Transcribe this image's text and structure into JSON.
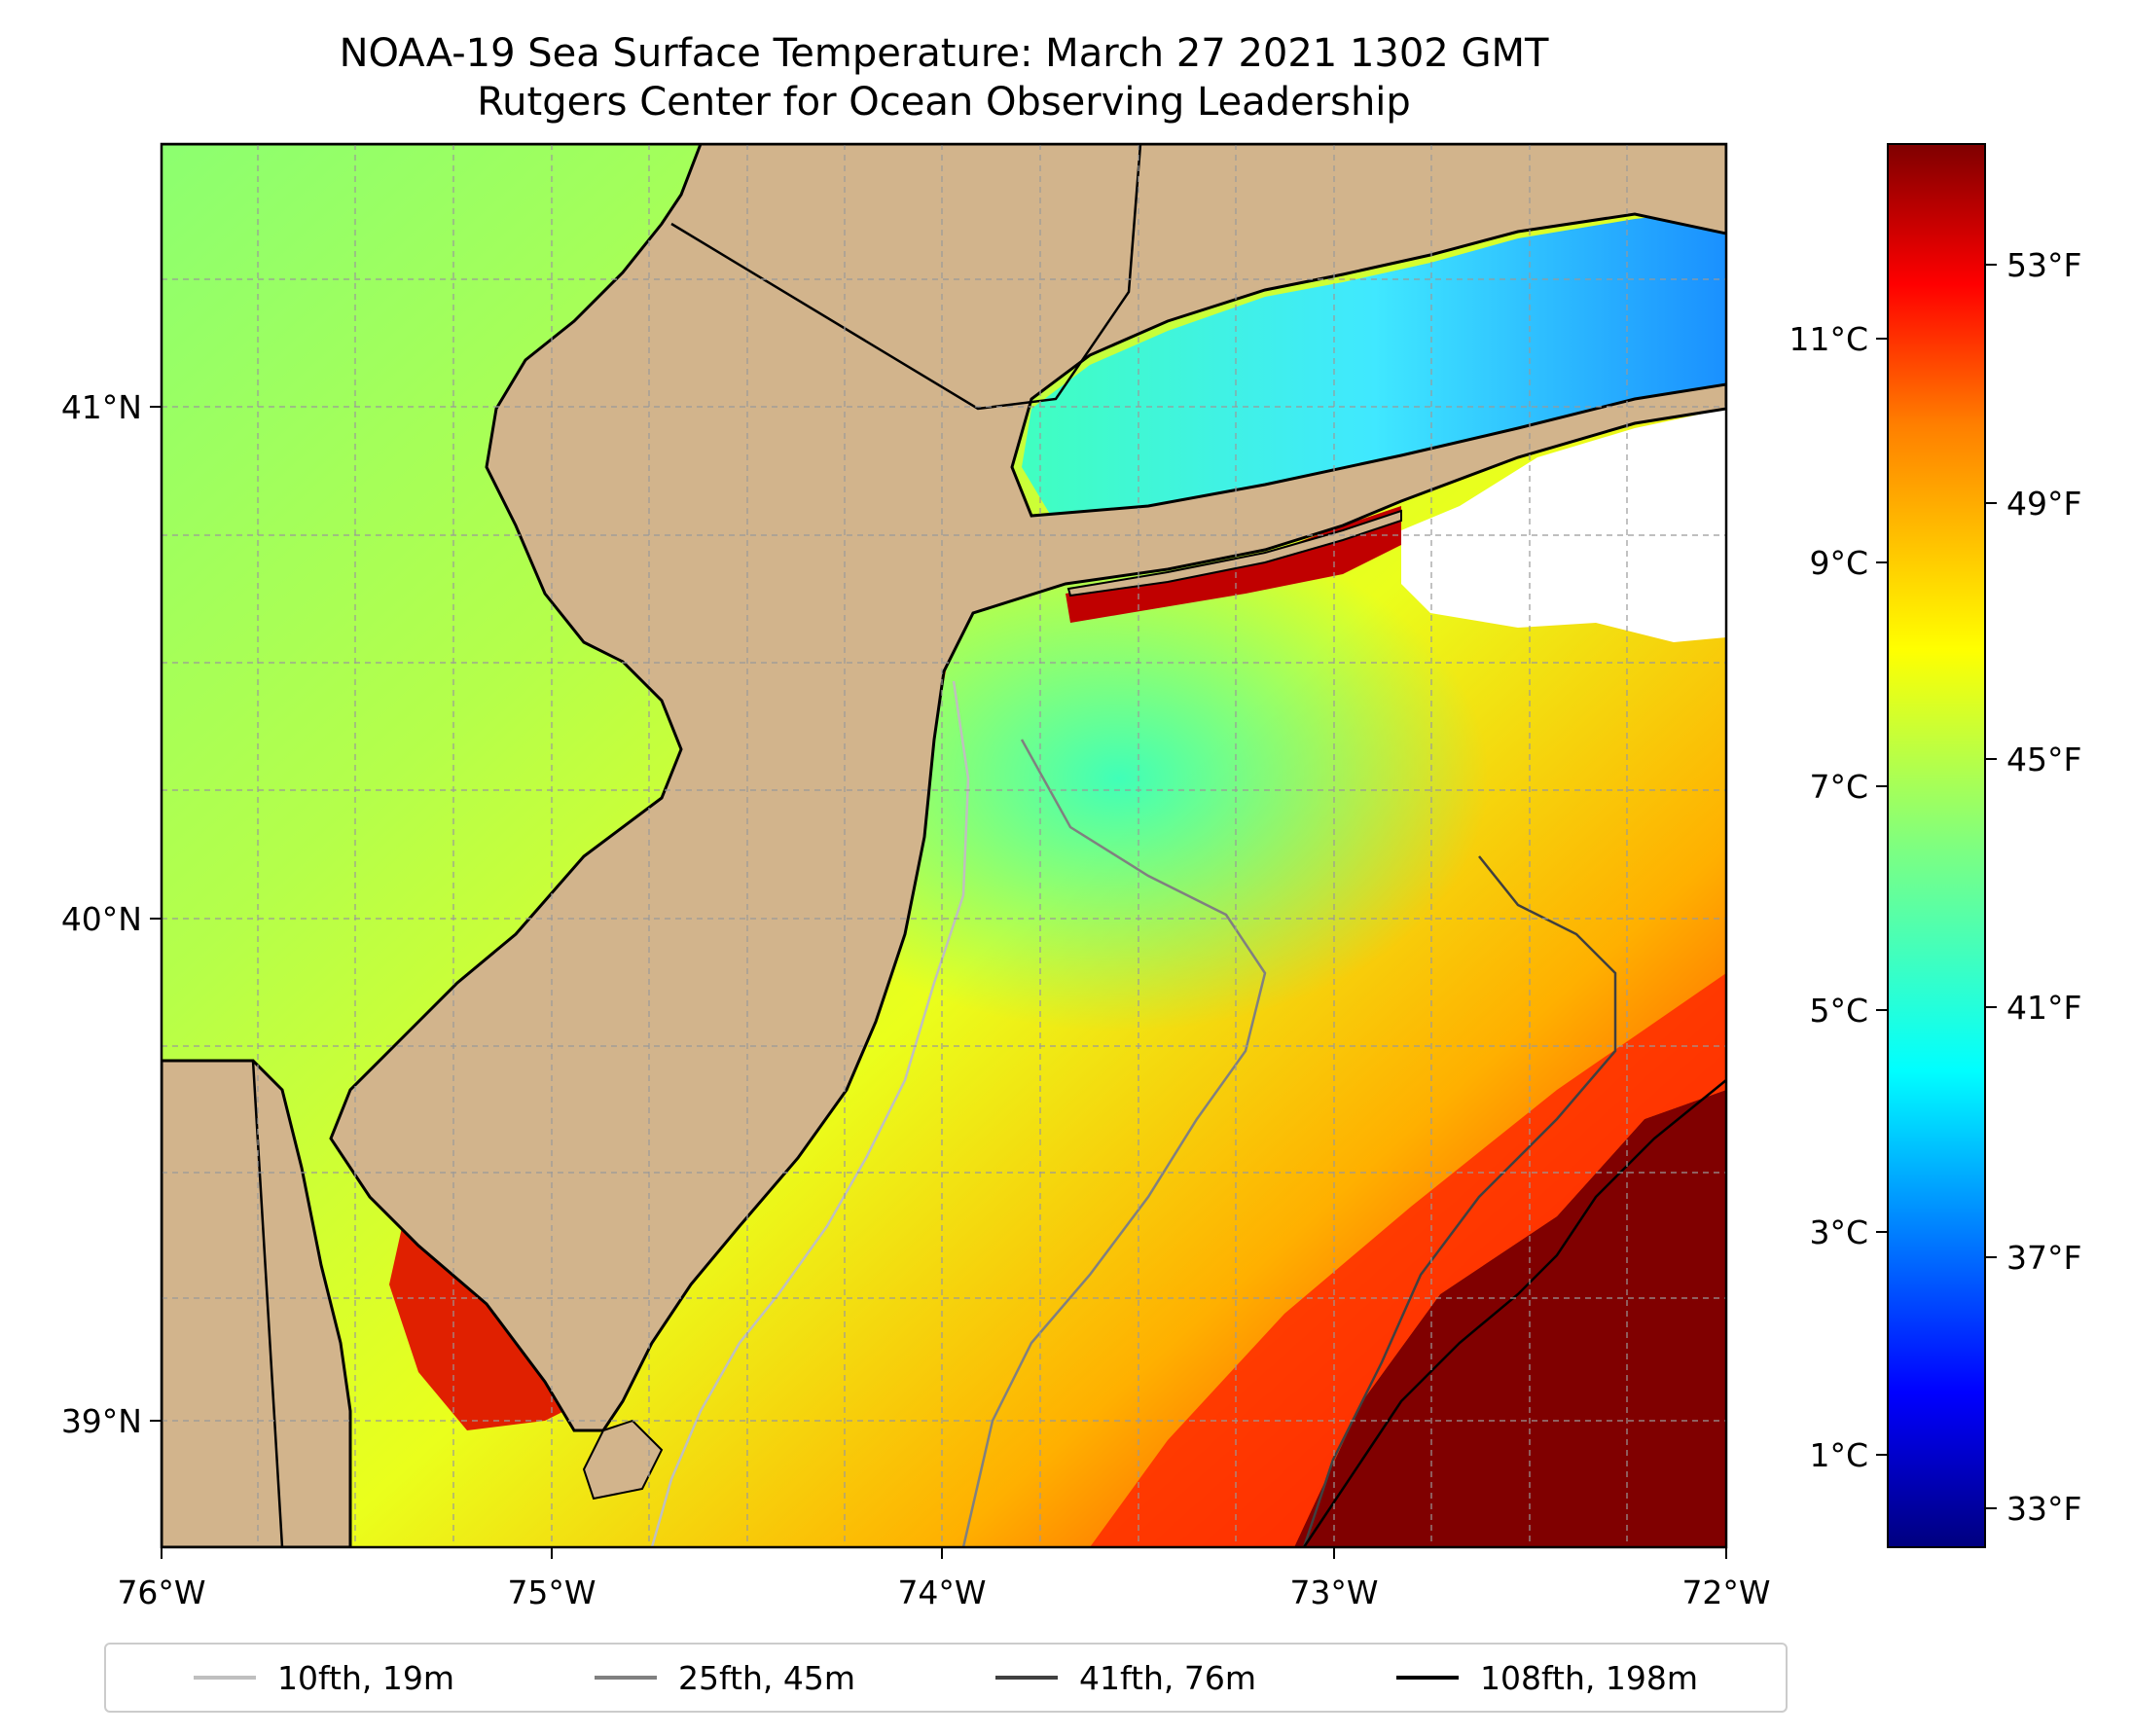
{
  "title_line1": "NOAA-19 Sea Surface Temperature: March 27 2021 1302 GMT",
  "title_line2": "Rutgers Center for Ocean Observing Leadership",
  "lon_labels": [
    "76°W",
    "75°W",
    "74°W",
    "73°W",
    "72°W"
  ],
  "lat_labels": [
    "41°N",
    "40°N",
    "39°N"
  ],
  "colorbar": {
    "celsius_labels": [
      "11°C",
      "9°C",
      "7°C",
      "5°C",
      "3°C",
      "1°C"
    ],
    "fahrenheit_labels": [
      "53°F",
      "49°F",
      "45°F",
      "41°F",
      "37°F",
      "33°F"
    ],
    "colormap": "jet",
    "colors": [
      "#00007f",
      "#0000ff",
      "#007fff",
      "#00ffff",
      "#7fff7f",
      "#ffff00",
      "#ff7f00",
      "#ff0000",
      "#7f0000"
    ]
  },
  "legend": [
    {
      "label": "10fth, 19m",
      "color": "#bfbfbf"
    },
    {
      "label": "25fth, 45m",
      "color": "#808080"
    },
    {
      "label": "41fth, 76m",
      "color": "#404040"
    },
    {
      "label": "108fth, 198m",
      "color": "#000000"
    }
  ],
  "land_color": "#d2b48c"
}
